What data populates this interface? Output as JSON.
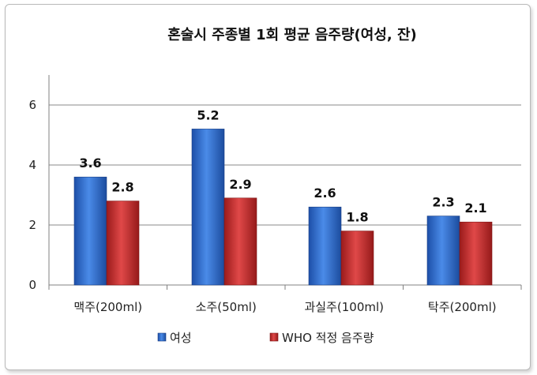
{
  "chart_data": {
    "type": "bar",
    "title": "혼술시 주종별 1회 평균 음주량(여성, 잔)",
    "xlabel": "",
    "ylabel": "",
    "categories": [
      "맥주(200ml)",
      "소주(50ml)",
      "과실주(100ml)",
      "탁주(200ml)"
    ],
    "series": [
      {
        "name": "여성",
        "values": [
          3.6,
          5.2,
          2.6,
          2.3
        ],
        "color": "#2f6fd0"
      },
      {
        "name": "WHO 적정 음주량",
        "values": [
          2.8,
          2.9,
          1.8,
          2.1
        ],
        "color": "#c22b2b"
      }
    ],
    "ylim": [
      0,
      7
    ],
    "yticks": [
      0,
      2,
      4,
      6
    ],
    "grid": true,
    "legend": "bottom"
  }
}
